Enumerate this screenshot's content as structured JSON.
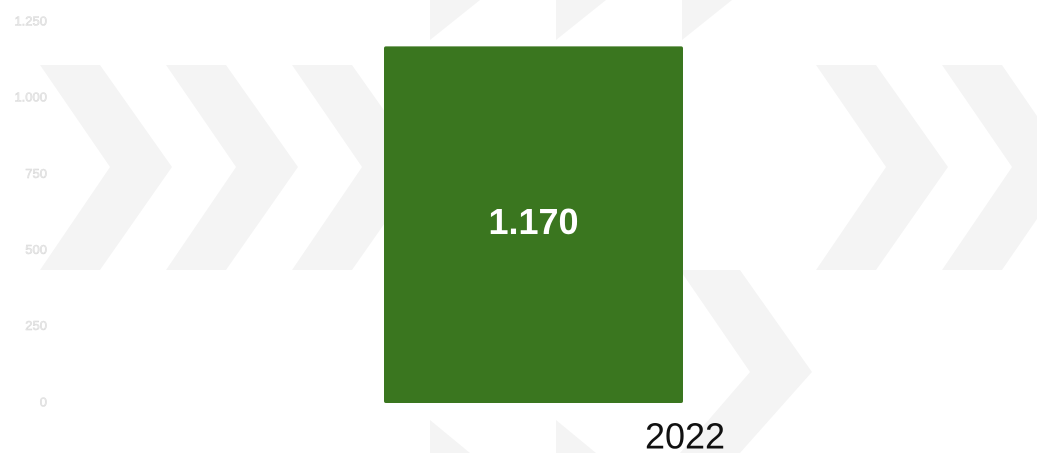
{
  "chart_data": {
    "type": "bar",
    "categories": [
      "2022"
    ],
    "values": [
      1170
    ],
    "value_labels": [
      "1.170"
    ],
    "color": "#3a761f",
    "ylim": [
      0,
      1250
    ],
    "yticks": [
      0,
      250,
      500,
      750,
      {
        "value": 1000,
        "label": "1.000"
      },
      {
        "value": 1250,
        "label": "1.250"
      }
    ],
    "grid": false
  }
}
